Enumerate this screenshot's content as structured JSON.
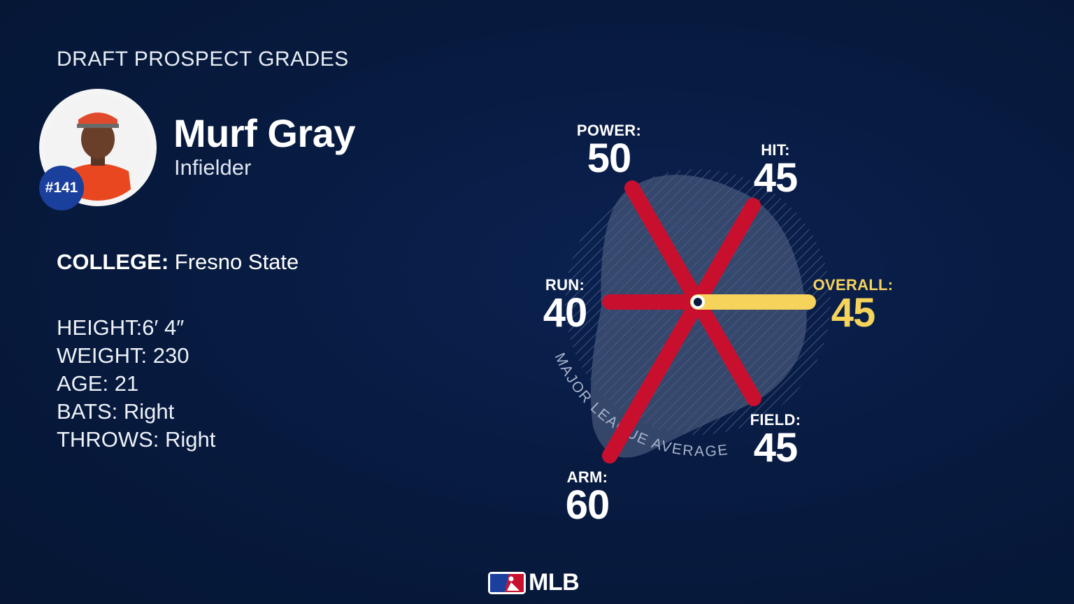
{
  "header": {
    "section_title": "DRAFT PROSPECT GRADES"
  },
  "player": {
    "name": "Murf Gray",
    "position": "Infielder",
    "rank": "#141",
    "college_label": "COLLEGE:",
    "college": "Fresno State",
    "stats": [
      {
        "label": "HEIGHT:",
        "value": "6′ 4″"
      },
      {
        "label": "WEIGHT:",
        "value": "230"
      },
      {
        "label": "AGE:",
        "value": "21"
      },
      {
        "label": "BATS:",
        "value": "Right"
      },
      {
        "label": "THROWS:",
        "value": "Right"
      }
    ]
  },
  "grades": {
    "power": {
      "label": "POWER:",
      "value": "50"
    },
    "hit": {
      "label": "HIT:",
      "value": "45"
    },
    "run": {
      "label": "RUN:",
      "value": "40"
    },
    "overall": {
      "label": "OVERALL:",
      "value": "45"
    },
    "field": {
      "label": "FIELD:",
      "value": "45"
    },
    "arm": {
      "label": "ARM:",
      "value": "60"
    }
  },
  "chart": {
    "average_label": "MAJOR LEAGUE AVERAGE"
  },
  "colors": {
    "background": "#071a3e",
    "spoke": "#c8102e",
    "overall": "#f6d35b",
    "badge": "#1a3f9c"
  },
  "footer": {
    "logo_text": "MLB"
  }
}
